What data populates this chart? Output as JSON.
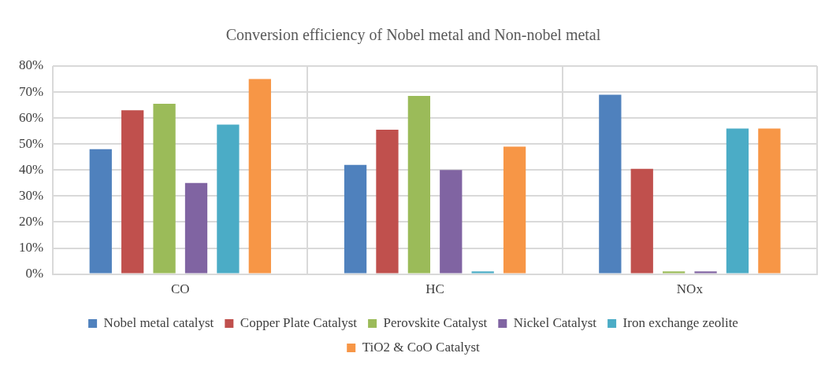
{
  "chart_data": {
    "type": "bar",
    "title": "Conversion efficiency of Nobel metal and Non-nobel metal",
    "categories": [
      "CO",
      "HC",
      "NOx"
    ],
    "series": [
      {
        "name": "Nobel metal catalyst",
        "color": "#4f81bd",
        "values": [
          48,
          42,
          69
        ]
      },
      {
        "name": "Copper Plate Catalyst",
        "color": "#c0504d",
        "values": [
          63,
          55.5,
          40.5
        ]
      },
      {
        "name": "Perovskite Catalyst",
        "color": "#9bbb59",
        "values": [
          65.5,
          68.5,
          1
        ]
      },
      {
        "name": "Nickel Catalyst",
        "color": "#8064a2",
        "values": [
          35,
          40,
          1
        ]
      },
      {
        "name": "Iron exchange zeolite",
        "color": "#4bacc6",
        "values": [
          57.5,
          1,
          56
        ]
      },
      {
        "name": "TiO2 & CoO Catalyst",
        "color": "#f79646",
        "values": [
          75,
          49,
          56
        ]
      }
    ],
    "ylim": [
      0,
      80
    ],
    "yticks": [
      {
        "value": 0,
        "label": "0%"
      },
      {
        "value": 10,
        "label": "10%"
      },
      {
        "value": 20,
        "label": "20%"
      },
      {
        "value": 30,
        "label": "30%"
      },
      {
        "value": 40,
        "label": "40%"
      },
      {
        "value": 50,
        "label": "50%"
      },
      {
        "value": 60,
        "label": "60%"
      },
      {
        "value": 70,
        "label": "70%"
      },
      {
        "value": 80,
        "label": "80%"
      }
    ],
    "grid": true,
    "legend": "bottom"
  }
}
